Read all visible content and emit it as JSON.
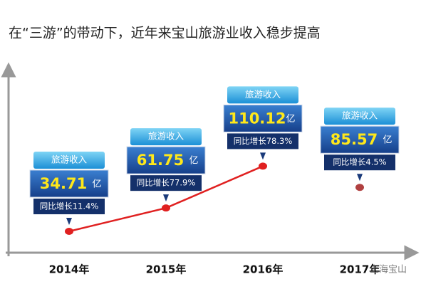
{
  "chart_data": {
    "type": "line",
    "title": "在“三游”的带动下，近年来宝山旅游业收入稳步提高",
    "categories": [
      "2014年",
      "2015年",
      "2016年",
      "2017年"
    ],
    "series": [
      {
        "color": "#e02020",
        "values": [
          34.71,
          61.75,
          110.12,
          null
        ]
      },
      {
        "color": "#b04040",
        "values": [
          null,
          null,
          null,
          85.57
        ]
      }
    ],
    "box_label": "旅游收入",
    "unit": "亿",
    "growth_labels": [
      "同比增长11.4%",
      "同比增长77.9%",
      "同比增长78.3%",
      "同比增长4.5%"
    ],
    "ylim": [
      10,
      150
    ],
    "watermark": "上海宝山"
  }
}
